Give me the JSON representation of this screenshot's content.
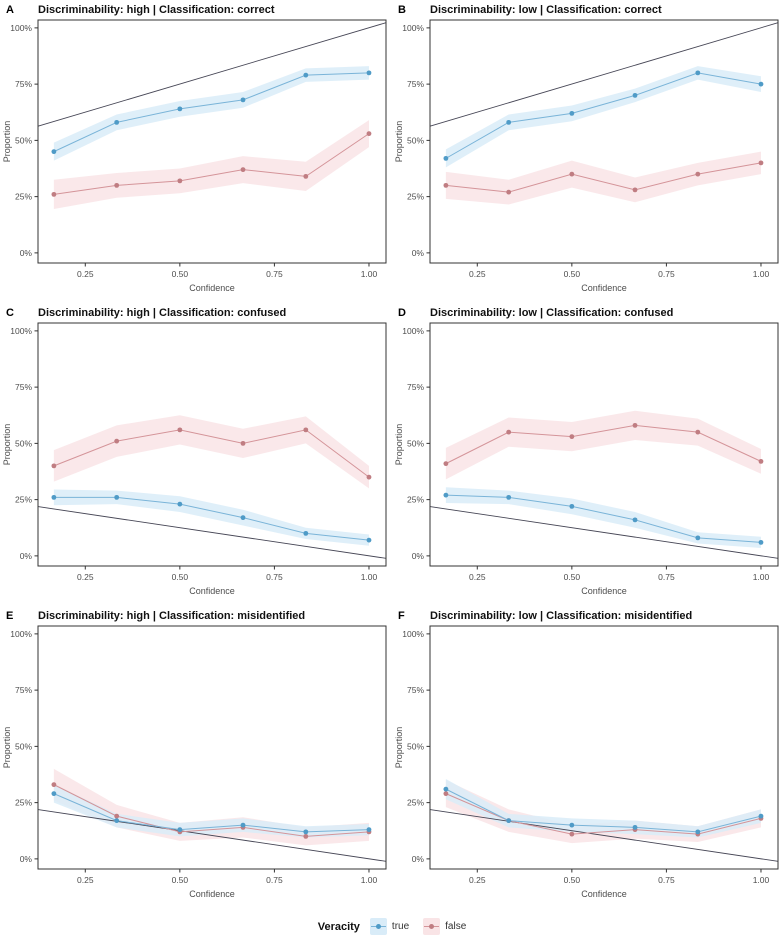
{
  "legend": {
    "title": "Veracity",
    "items": [
      {
        "label": "true",
        "line": "#7ab4d8",
        "point": "#4f9bc7",
        "fill": "#d9ecf8"
      },
      {
        "label": "false",
        "line": "#d49499",
        "point": "#c07d82",
        "fill": "#f9e4e6"
      }
    ]
  },
  "axes": {
    "x_label": "Confidence",
    "y_label": "Proportion",
    "x_ticks": [
      0.25,
      0.5,
      0.75,
      1.0
    ],
    "x_tick_labels": [
      "0.25",
      "0.50",
      "0.75",
      "1.00"
    ],
    "y_ticks": [
      0,
      25,
      50,
      75,
      100
    ],
    "y_tick_labels": [
      "0%",
      "25%",
      "50%",
      "75%",
      "100%"
    ],
    "x_domain": [
      0.125,
      1.045
    ],
    "y_domain": [
      -4.5,
      103.5
    ],
    "grid": false,
    "ref_line_color": "#474756",
    "border_color": "#333333",
    "tick_text_color": "#4d4d4d"
  },
  "chart_data": [
    {
      "letter": "A",
      "title": "Discriminability: high | Classification: correct",
      "type": "line",
      "x": [
        0.167,
        0.333,
        0.5,
        0.667,
        0.833,
        1.0
      ],
      "series": [
        {
          "name": "true",
          "values": [
            45,
            58,
            64,
            68,
            79,
            80
          ],
          "band": [
            4,
            3.5,
            3.5,
            3.5,
            3,
            3
          ]
        },
        {
          "name": "false",
          "values": [
            26,
            30,
            32,
            37,
            34,
            53
          ],
          "band": [
            6.5,
            5.5,
            5.5,
            6,
            6.5,
            6
          ]
        }
      ],
      "ref_line": {
        "x": [
          0.125,
          1.045
        ],
        "y": [
          56.3,
          102.3
        ]
      }
    },
    {
      "letter": "B",
      "title": "Discriminability: low | Classification: correct",
      "type": "line",
      "x": [
        0.167,
        0.333,
        0.5,
        0.667,
        0.833,
        1.0
      ],
      "series": [
        {
          "name": "true",
          "values": [
            42,
            58,
            62,
            70,
            80,
            75
          ],
          "band": [
            4,
            3.5,
            3.5,
            3,
            3,
            3.5
          ]
        },
        {
          "name": "false",
          "values": [
            30,
            27,
            35,
            28,
            35,
            40
          ],
          "band": [
            6,
            5.5,
            6,
            5.5,
            5,
            5
          ]
        }
      ],
      "ref_line": {
        "x": [
          0.125,
          1.045
        ],
        "y": [
          56.3,
          102.3
        ]
      }
    },
    {
      "letter": "C",
      "title": "Discriminability: high | Classification: confused",
      "type": "line",
      "x": [
        0.167,
        0.333,
        0.5,
        0.667,
        0.833,
        1.0
      ],
      "series": [
        {
          "name": "true",
          "values": [
            26,
            26,
            23,
            17,
            10,
            7
          ],
          "band": [
            3.5,
            3,
            3.5,
            3.5,
            2.5,
            2.5
          ]
        },
        {
          "name": "false",
          "values": [
            40,
            51,
            56,
            50,
            56,
            35
          ],
          "band": [
            7,
            7,
            6.5,
            6.5,
            6,
            5
          ]
        }
      ],
      "ref_line": {
        "x": [
          0.125,
          1.045
        ],
        "y": [
          21.9,
          -1.1
        ]
      }
    },
    {
      "letter": "D",
      "title": "Discriminability: low | Classification: confused",
      "type": "line",
      "x": [
        0.167,
        0.333,
        0.5,
        0.667,
        0.833,
        1.0
      ],
      "series": [
        {
          "name": "true",
          "values": [
            27,
            26,
            22,
            16,
            8,
            6
          ],
          "band": [
            3.5,
            3,
            3.5,
            3.5,
            2.5,
            2.5
          ]
        },
        {
          "name": "false",
          "values": [
            41,
            55,
            53,
            58,
            55,
            42
          ],
          "band": [
            7,
            6.5,
            6.5,
            6.5,
            6,
            5.5
          ]
        }
      ],
      "ref_line": {
        "x": [
          0.125,
          1.045
        ],
        "y": [
          21.9,
          -1.1
        ]
      }
    },
    {
      "letter": "E",
      "title": "Discriminability: high | Classification: misidentified",
      "type": "line",
      "x": [
        0.167,
        0.333,
        0.5,
        0.667,
        0.833,
        1.0
      ],
      "series": [
        {
          "name": "true",
          "values": [
            29,
            17,
            13,
            15,
            12,
            13
          ],
          "band": [
            4,
            3,
            3,
            3,
            2.5,
            2.5
          ]
        },
        {
          "name": "false",
          "values": [
            33,
            19,
            12,
            14,
            10,
            12
          ],
          "band": [
            7,
            5,
            4,
            4.5,
            4,
            4
          ]
        }
      ],
      "ref_line": {
        "x": [
          0.125,
          1.045
        ],
        "y": [
          21.9,
          -1.1
        ]
      }
    },
    {
      "letter": "F",
      "title": "Discriminability: low | Classification: misidentified",
      "type": "line",
      "x": [
        0.167,
        0.333,
        0.5,
        0.667,
        0.833,
        1.0
      ],
      "series": [
        {
          "name": "true",
          "values": [
            31,
            17,
            15,
            14,
            12,
            19
          ],
          "band": [
            4.5,
            3,
            3,
            3,
            2.5,
            3
          ]
        },
        {
          "name": "false",
          "values": [
            29,
            17,
            11,
            13,
            11,
            18
          ],
          "band": [
            6,
            5,
            4,
            4,
            3.5,
            4
          ]
        }
      ],
      "ref_line": {
        "x": [
          0.125,
          1.045
        ],
        "y": [
          21.9,
          -1.1
        ]
      }
    }
  ]
}
